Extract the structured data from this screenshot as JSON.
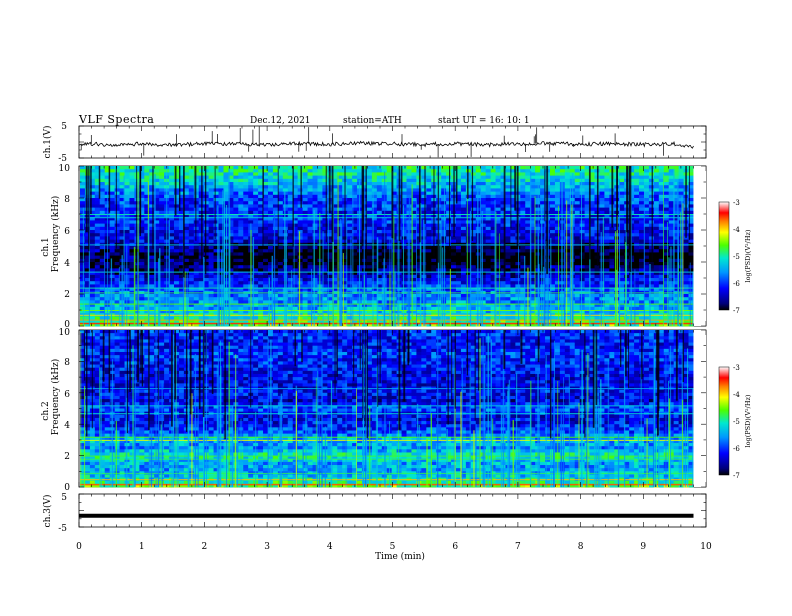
{
  "header": {
    "title": "VLF  Spectra",
    "date": "Dec.12, 2021",
    "station": "station=ATH",
    "start_ut": "start  UT  =    16: 10: 1"
  },
  "chart_data": [
    {
      "type": "line",
      "panel": "ch1-waveform",
      "ylabel": "ch.1(V)",
      "ylim": [
        -5,
        5
      ],
      "yticks": [
        "5",
        "-5"
      ],
      "xlim": [
        0,
        10
      ],
      "trace_color": "#000000",
      "series": [
        {
          "x": [
            0,
            0.5,
            1,
            1.5,
            2,
            2.5,
            3,
            3.5,
            4,
            4.5,
            5,
            5.5,
            6,
            6.5,
            7,
            7.5,
            8,
            8.5,
            9,
            9.5,
            9.8
          ],
          "values": [
            -0.5,
            -0.8,
            -0.6,
            -1.0,
            -0.4,
            -0.6,
            -0.9,
            -0.5,
            -0.7,
            -0.4,
            -0.6,
            -0.8,
            -0.5,
            -0.9,
            -0.6,
            -0.4,
            -0.7,
            -0.5,
            -0.8,
            -0.6,
            -1.5
          ]
        }
      ]
    },
    {
      "type": "heatmap",
      "panel": "ch1-spectrogram",
      "ylabel": "ch.1",
      "ylabel2": "Frequency (kHz)",
      "yticks": [
        "0",
        "2",
        "4",
        "6",
        "8",
        "10"
      ],
      "ylim": [
        0,
        10
      ],
      "xlim": [
        0,
        9.8
      ],
      "colorbar": {
        "label": "log(PSD)(V²/Hz)",
        "ticks": [
          "-3",
          "-4",
          "-5",
          "-6",
          "-7"
        ],
        "range": [
          -7,
          -3
        ]
      },
      "band_profile_log_psd": {
        "freq_khz": [
          0,
          0.5,
          1,
          1.5,
          2,
          2.5,
          3,
          3.5,
          4,
          4.5,
          5,
          5.5,
          6,
          6.5,
          7,
          7.5,
          8,
          8.5,
          9,
          9.5,
          10
        ],
        "log_psd": [
          -4.6,
          -5.0,
          -5.4,
          -5.6,
          -5.7,
          -6.0,
          -6.3,
          -6.7,
          -6.8,
          -6.8,
          -6.4,
          -6.3,
          -6.2,
          -6.1,
          -6.1,
          -6.0,
          -5.9,
          -5.6,
          -5.3,
          -5.1,
          -5.0
        ]
      }
    },
    {
      "type": "heatmap",
      "panel": "ch2-spectrogram",
      "ylabel": "ch.2",
      "ylabel2": "Frequency (kHz)",
      "yticks": [
        "0",
        "2",
        "4",
        "6",
        "8",
        "10"
      ],
      "ylim": [
        0,
        10
      ],
      "xlim": [
        0,
        9.8
      ],
      "colorbar": {
        "label": "log(PSD)(V²/Hz)",
        "ticks": [
          "-3",
          "-4",
          "-5",
          "-6",
          "-7"
        ],
        "range": [
          -7,
          -3
        ]
      },
      "band_profile_log_psd": {
        "freq_khz": [
          0,
          0.5,
          1,
          1.5,
          2,
          2.5,
          3,
          3.5,
          4,
          4.5,
          5,
          5.5,
          6,
          6.5,
          7,
          7.5,
          8,
          8.5,
          9,
          9.5,
          10
        ],
        "log_psd": [
          -4.5,
          -5.2,
          -5.5,
          -5.5,
          -5.0,
          -5.6,
          -5.4,
          -5.9,
          -6.2,
          -6.3,
          -5.8,
          -6.4,
          -6.2,
          -6.3,
          -6.3,
          -6.2,
          -6.1,
          -6.0,
          -6.2,
          -6.1,
          -6.0
        ]
      }
    },
    {
      "type": "line",
      "panel": "ch3-waveform",
      "ylabel": "ch.3(V)",
      "ylim": [
        -5,
        5
      ],
      "yticks": [
        "5",
        "-5"
      ],
      "xlim": [
        0,
        10
      ],
      "xlabel": "Time  (min)",
      "xticks": [
        "0",
        "1",
        "2",
        "3",
        "4",
        "5",
        "6",
        "7",
        "8",
        "9",
        "10"
      ],
      "series": [
        {
          "x": [
            0,
            9.8
          ],
          "values": [
            -1.6,
            -1.6
          ]
        }
      ]
    }
  ]
}
